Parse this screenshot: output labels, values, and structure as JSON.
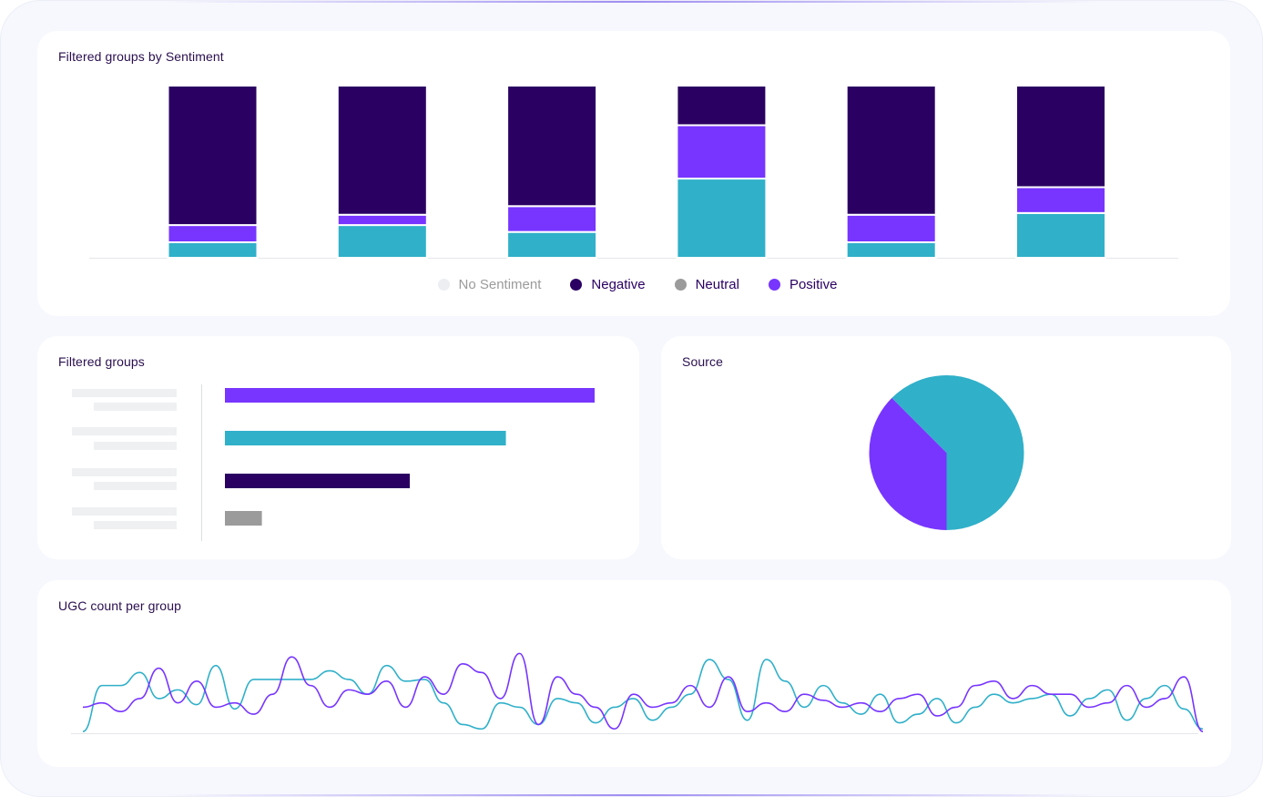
{
  "colors": {
    "no_sentiment": "#eceef2",
    "negative": "#2a0062",
    "neutral": "#9b9b9b",
    "positive": "#7735ff",
    "teal": "#30b0c9"
  },
  "chart_data": [
    {
      "type": "bar",
      "stacked": true,
      "title": "Filtered groups by Sentiment",
      "categories": [
        "",
        "",
        "",
        "",
        "",
        ""
      ],
      "legend_position": "bottom",
      "legend": [
        "No Sentiment",
        "Negative",
        "Neutral",
        "Positive"
      ],
      "series": [
        {
          "color": "#30b0c9",
          "values": [
            9,
            19,
            15,
            46,
            9,
            26
          ]
        },
        {
          "name": "Positive",
          "color": "#7735ff",
          "values": [
            10,
            6,
            15,
            31,
            16,
            15
          ]
        },
        {
          "name": "Negative",
          "color": "#2a0062",
          "values": [
            81,
            75,
            70,
            23,
            75,
            59
          ]
        }
      ],
      "ylim": [
        0,
        100
      ],
      "grid": false
    },
    {
      "type": "bar",
      "orientation": "horizontal",
      "title": "Filtered groups",
      "values": [
        100,
        76,
        50,
        10
      ],
      "colors": [
        "#7735ff",
        "#30b0c9",
        "#2a0062",
        "#9b9b9b"
      ],
      "xlim": [
        0,
        100
      ]
    },
    {
      "type": "pie",
      "title": "Source",
      "slices": [
        {
          "value": 50,
          "color": "#30b0c9"
        },
        {
          "value": 37.5,
          "color": "#7735ff"
        },
        {
          "value": 12.5,
          "color": "#30b0c9"
        }
      ],
      "start_angle_deg": 0
    },
    {
      "type": "line",
      "title": "UGC count per group",
      "x": [
        0,
        1,
        2,
        3,
        4,
        5,
        6,
        7,
        8,
        9,
        10,
        11,
        12,
        13,
        14,
        15,
        16,
        17,
        18,
        19,
        20,
        21,
        22,
        23,
        24,
        25,
        26,
        27,
        28,
        29,
        30,
        31,
        32,
        33,
        34,
        35,
        36,
        37,
        38,
        39,
        40,
        41,
        42,
        43,
        44,
        45,
        46,
        47,
        48,
        49,
        50,
        51,
        52,
        53,
        54,
        55,
        56,
        57,
        58,
        59
      ],
      "ylim": [
        0,
        105
      ],
      "series": [
        {
          "color": "#30b0c9",
          "values": [
            2,
            55,
            55,
            70,
            40,
            50,
            33,
            78,
            28,
            62,
            62,
            62,
            62,
            72,
            62,
            45,
            78,
            60,
            62,
            35,
            10,
            5,
            35,
            30,
            10,
            40,
            35,
            12,
            30,
            40,
            15,
            30,
            45,
            85,
            62,
            15,
            85,
            60,
            30,
            55,
            35,
            22,
            45,
            12,
            22,
            40,
            12,
            30,
            45,
            35,
            40,
            45,
            20,
            40,
            50,
            15,
            40,
            55,
            28,
            5
          ]
        },
        {
          "color": "#7735ff",
          "values": [
            30,
            35,
            25,
            40,
            75,
            35,
            60,
            30,
            35,
            22,
            45,
            88,
            55,
            30,
            50,
            45,
            60,
            30,
            65,
            45,
            80,
            70,
            40,
            92,
            10,
            65,
            45,
            30,
            5,
            45,
            30,
            35,
            55,
            30,
            65,
            25,
            35,
            25,
            45,
            38,
            30,
            35,
            25,
            40,
            45,
            20,
            30,
            55,
            60,
            40,
            55,
            45,
            45,
            30,
            35,
            55,
            30,
            40,
            65,
            2
          ]
        }
      ],
      "grid": false
    }
  ]
}
